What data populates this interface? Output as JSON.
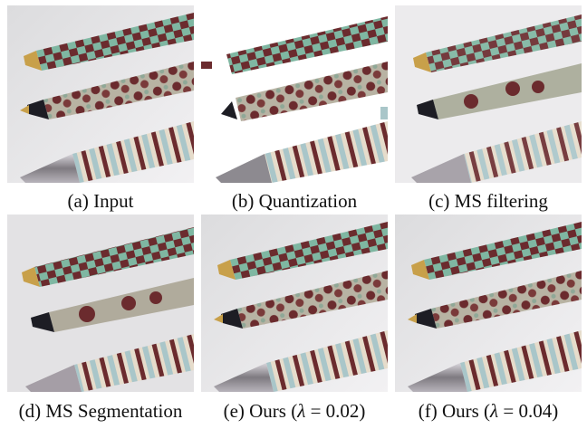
{
  "figure": {
    "panels": [
      {
        "id": "a",
        "caption": "(a) Input",
        "variant": "input"
      },
      {
        "id": "b",
        "caption": "(b) Quantization",
        "variant": "quantization"
      },
      {
        "id": "c",
        "caption": "(c) MS filtering",
        "variant": "ms-filtering"
      },
      {
        "id": "d",
        "caption": "(d) MS Segmentation",
        "variant": "ms-segmentation"
      },
      {
        "id": "e",
        "caption_prefix": "(e) Ours (",
        "caption_symbol": "λ",
        "caption_suffix": " = 0.02)",
        "variant": "ours-002"
      },
      {
        "id": "f",
        "caption_prefix": "(f) Ours (",
        "caption_symbol": "λ",
        "caption_suffix": " = 0.04)",
        "variant": "ours-004"
      }
    ],
    "colors": {
      "teal": "#7fb7a2",
      "maroon": "#6b2b2e",
      "cream": "#e6dccb",
      "light_blue": "#a9c6c9",
      "brass": "#c8a04a",
      "chrome": "#8d8a90",
      "background": "#e9e8ea"
    }
  }
}
